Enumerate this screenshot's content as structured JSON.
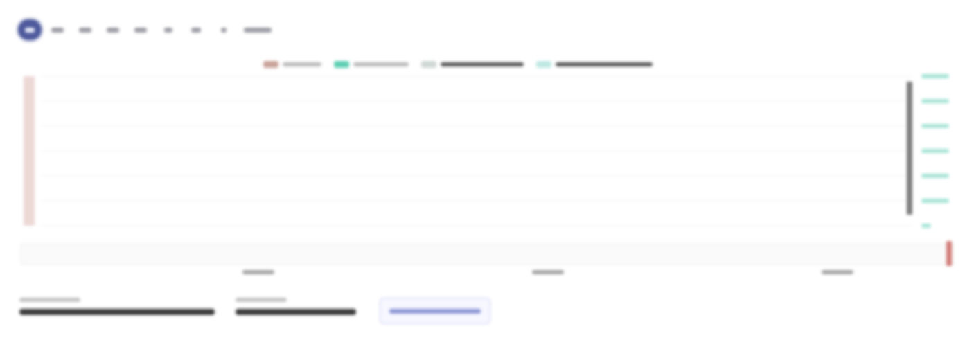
{
  "range_selector": {
    "buttons": [
      {
        "label": "",
        "active": true
      },
      {
        "label": "",
        "active": false
      },
      {
        "label": "",
        "active": false
      },
      {
        "label": "",
        "active": false
      },
      {
        "label": "",
        "active": false
      },
      {
        "label": "",
        "active": false
      },
      {
        "label": "",
        "active": false
      },
      {
        "label": "",
        "active": false
      },
      {
        "label": "",
        "active": false
      }
    ]
  },
  "legend": [
    {
      "label": "",
      "color": "#c9a49a"
    },
    {
      "label": "",
      "color": "#5fd0b4"
    },
    {
      "label": "",
      "color": "#cfd8d4"
    },
    {
      "label": "",
      "color": "#bfe8e2"
    }
  ],
  "info": {
    "fields": [
      {
        "label": "",
        "value": ""
      },
      {
        "label": "",
        "value": ""
      }
    ],
    "link_label": ""
  },
  "colors": {
    "accent": "#4e5a9c",
    "series_1": "#6f8f83",
    "series_2": "#3fd0b0",
    "left_axis": "#c98f86",
    "right_axis": "#5fd0b4",
    "navigator": "#b9c3bf",
    "navigator_handle": "#c85b55"
  },
  "chart_data": {
    "type": "line",
    "title": "",
    "xlabel": "",
    "ylabel": "",
    "legend_position": "top-center",
    "grid": true,
    "ylim": [
      0,
      100
    ],
    "y2lim": [
      0,
      6
    ],
    "y_tick_labels": [],
    "y2_tick_labels": [
      "",
      "",
      "",
      "",
      "",
      "",
      ""
    ],
    "x_tick_labels": [
      "",
      "",
      ""
    ],
    "series": [
      {
        "name": "",
        "axis": "left",
        "values": []
      },
      {
        "name": "",
        "axis": "right",
        "values": []
      }
    ],
    "navigator": {
      "values": []
    }
  }
}
